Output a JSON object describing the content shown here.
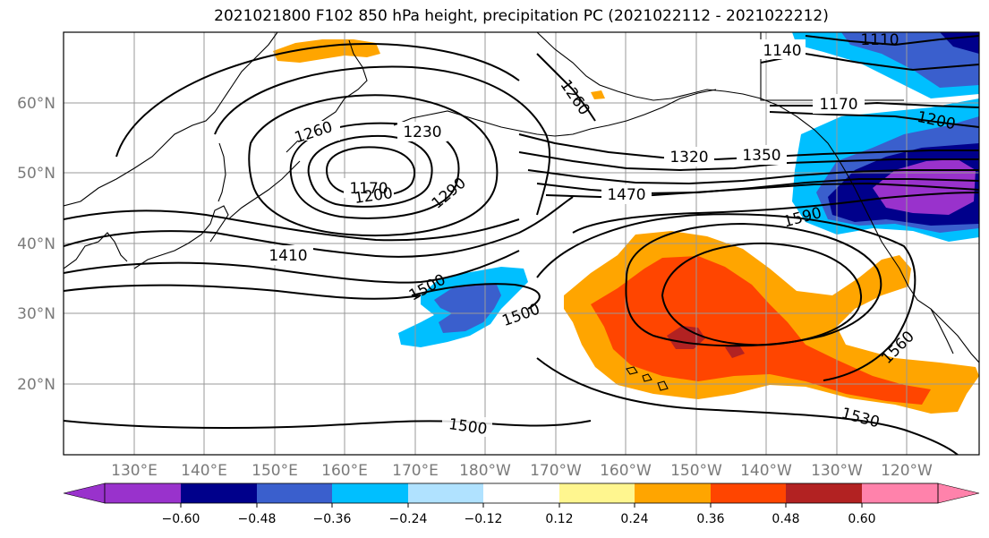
{
  "title": "2021021800 F102 850 hPa height, precipitation PC (2021022112 - 2021022212)",
  "lat_labels": [
    "60°N",
    "50°N",
    "40°N",
    "30°N",
    "20°N"
  ],
  "lon_labels": [
    "130°E",
    "140°E",
    "150°E",
    "160°E",
    "170°E",
    "180°W",
    "170°W",
    "160°W",
    "150°W",
    "140°W",
    "130°W",
    "120°W"
  ],
  "contour_labels": [
    "1140",
    "1110",
    "1260",
    "1170",
    "1200",
    "1260",
    "1230",
    "1320",
    "1350",
    "1170",
    "1200",
    "1290",
    "1470",
    "1590",
    "1410",
    "1500",
    "1500",
    "1560",
    "1500",
    "1530"
  ],
  "colorbar": {
    "ticks": [
      "−0.60",
      "−0.48",
      "−0.36",
      "−0.24",
      "−0.12",
      "0.12",
      "0.24",
      "0.36",
      "0.48",
      "0.60"
    ],
    "colors": [
      "#9932cc",
      "#00008b",
      "#3a5fcd",
      "#00bfff",
      "#b0e2ff",
      "#ffffff",
      "#fff68f",
      "#ffa500",
      "#ff4500",
      "#b22222",
      "#ff82ab"
    ]
  }
}
